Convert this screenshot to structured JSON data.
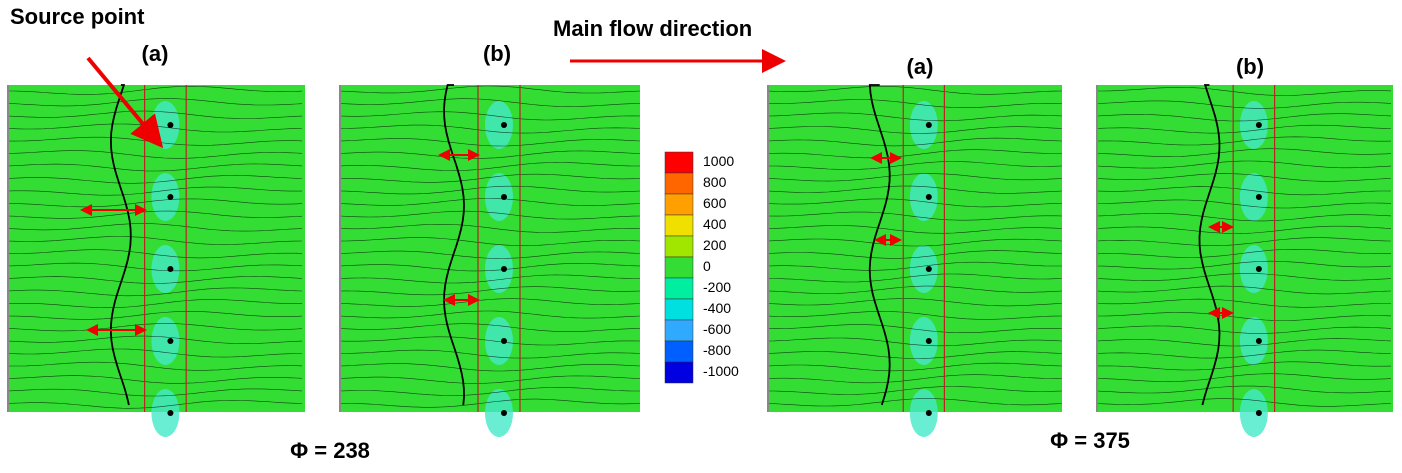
{
  "annotations": {
    "source_point": "Source point",
    "flow": "Main flow direction"
  },
  "panels": [
    {
      "label": "(a)"
    },
    {
      "label": "(b)"
    },
    {
      "label": "(a)"
    },
    {
      "label": "(b)"
    }
  ],
  "colorbar": {
    "labels": [
      1000,
      800,
      600,
      400,
      200,
      0,
      -200,
      -400,
      -600,
      -800,
      -1000
    ]
  },
  "captions": [
    "Φ = 238",
    "Φ = 375"
  ]
}
